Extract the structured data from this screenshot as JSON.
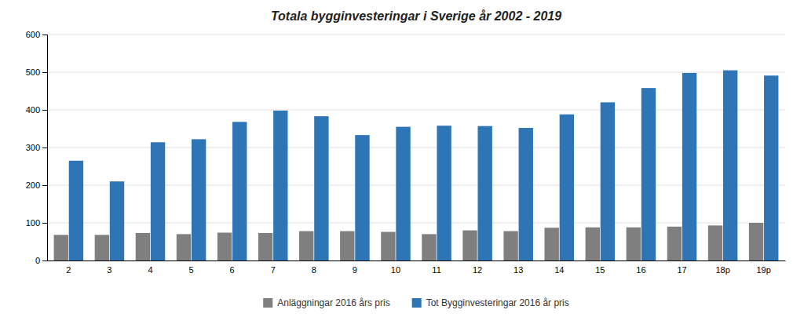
{
  "chart_data": {
    "type": "bar",
    "title": "Totala bygginvesteringar i Sverige år 2002 - 2019",
    "categories": [
      "2",
      "3",
      "4",
      "5",
      "6",
      "7",
      "8",
      "9",
      "10",
      "11",
      "12",
      "13",
      "14",
      "15",
      "16",
      "17",
      "18p",
      "19p"
    ],
    "series": [
      {
        "name": "Anläggningar 2016 års pris",
        "color": "#7F7F7F",
        "values": [
          68,
          68,
          73,
          70,
          74,
          73,
          78,
          78,
          76,
          70,
          80,
          78,
          87,
          88,
          88,
          90,
          93,
          100
        ]
      },
      {
        "name": "Tot Bygginvesteringar 2016 år pris",
        "color": "#2E75B6",
        "values": [
          265,
          210,
          314,
          322,
          368,
          398,
          383,
          333,
          355,
          358,
          357,
          352,
          388,
          420,
          458,
          498,
          505,
          491
        ]
      }
    ],
    "ylim": [
      0,
      600
    ],
    "yticks": [
      0,
      100,
      200,
      300,
      400,
      500,
      600
    ],
    "grid": true,
    "legend": "bottom"
  }
}
